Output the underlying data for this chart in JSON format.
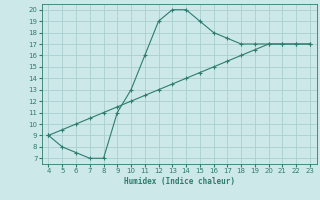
{
  "xlabel": "Humidex (Indice chaleur)",
  "bg_color": "#cce8e8",
  "grid_color": "#aacfcf",
  "line_color": "#2d7d6e",
  "xlim": [
    3.5,
    23.5
  ],
  "ylim": [
    6.5,
    20.5
  ],
  "xticks": [
    4,
    5,
    6,
    7,
    8,
    9,
    10,
    11,
    12,
    13,
    14,
    15,
    16,
    17,
    18,
    19,
    20,
    21,
    22,
    23
  ],
  "yticks": [
    7,
    8,
    9,
    10,
    11,
    12,
    13,
    14,
    15,
    16,
    17,
    18,
    19,
    20
  ],
  "curve_x": [
    4,
    5,
    6,
    7,
    8,
    9,
    10,
    11,
    12,
    13,
    14,
    15,
    16,
    17,
    18,
    19,
    20,
    21,
    22,
    23
  ],
  "curve_y": [
    9.0,
    8.0,
    7.5,
    7.0,
    7.0,
    11.0,
    13.0,
    16.0,
    19.0,
    20.0,
    20.0,
    19.0,
    18.0,
    17.5,
    17.0,
    17.0,
    17.0,
    17.0,
    17.0,
    17.0
  ],
  "diag_x": [
    4,
    5,
    6,
    7,
    8,
    9,
    10,
    11,
    12,
    13,
    14,
    15,
    16,
    17,
    18,
    19,
    20,
    21,
    22,
    23
  ],
  "diag_y": [
    9.0,
    9.5,
    10.0,
    10.5,
    11.0,
    11.5,
    12.0,
    12.5,
    13.0,
    13.5,
    14.0,
    14.5,
    15.0,
    15.5,
    16.0,
    16.5,
    17.0,
    17.0,
    17.0,
    17.0
  ]
}
